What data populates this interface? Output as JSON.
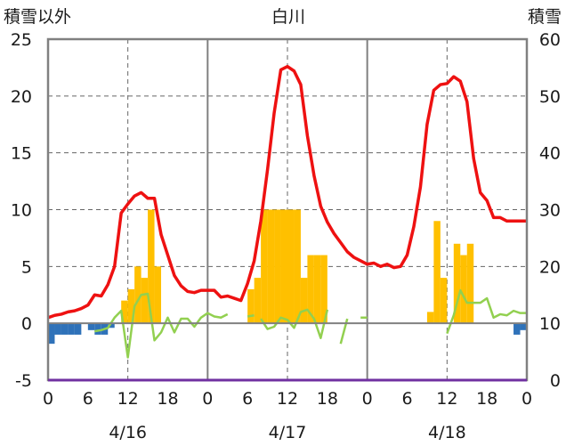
{
  "chart_data": {
    "type": "bar+line",
    "title": "白川",
    "left_axis_label": "積雪以外",
    "right_axis_label": "積雪",
    "left_ylim": [
      -5,
      25
    ],
    "left_yticks": [
      -5,
      0,
      5,
      10,
      15,
      20,
      25
    ],
    "right_ylim": [
      0,
      60
    ],
    "right_yticks": [
      0,
      10,
      20,
      30,
      40,
      50,
      60
    ],
    "xlim_hours": [
      0,
      72
    ],
    "x_tick_values": [
      0,
      6,
      12,
      18,
      24,
      30,
      36,
      42,
      48,
      54,
      60,
      66,
      72
    ],
    "x_tick_labels": [
      "0",
      "6",
      "12",
      "18",
      "0",
      "6",
      "12",
      "18",
      "0",
      "6",
      "12",
      "18",
      "0"
    ],
    "day_labels": [
      {
        "label": "4/16",
        "center_hour": 12
      },
      {
        "label": "4/17",
        "center_hour": 36
      },
      {
        "label": "4/18",
        "center_hour": 60
      }
    ],
    "day_dividers_hours": [
      24,
      48
    ],
    "noon_dashed_hours": [
      12,
      36,
      60
    ],
    "grid": {
      "horizontal": "dashed",
      "values": [
        5,
        10,
        15,
        20
      ]
    },
    "colors": {
      "temperature": "#ee1111",
      "precip": "#ffc000",
      "snow": "#2f72b9",
      "wind": "#92d050",
      "bottom_line": "#7030a0",
      "axes": "#808080",
      "grid": "#666666"
    },
    "series": [
      {
        "role": "temperature",
        "axis": "left",
        "type": "line",
        "x": [
          0,
          1,
          2,
          3,
          4,
          5,
          6,
          7,
          8,
          9,
          10,
          11,
          12,
          13,
          14,
          15,
          16,
          17,
          18,
          19,
          20,
          21,
          22,
          23,
          24,
          25,
          26,
          27,
          28,
          29,
          30,
          31,
          32,
          33,
          34,
          35,
          36,
          37,
          38,
          39,
          40,
          41,
          42,
          43,
          44,
          45,
          46,
          47,
          48,
          49,
          50,
          51,
          52,
          53,
          54,
          55,
          56,
          57,
          58,
          59,
          60,
          61,
          62,
          63,
          64,
          65,
          66,
          67,
          68,
          69,
          70,
          71,
          72
        ],
        "values": [
          0.5,
          0.7,
          0.8,
          1.0,
          1.1,
          1.3,
          1.6,
          2.5,
          2.4,
          3.4,
          5.0,
          9.7,
          10.5,
          11.2,
          11.5,
          11.0,
          11.0,
          7.8,
          6.0,
          4.2,
          3.3,
          2.8,
          2.7,
          2.9,
          2.9,
          2.9,
          2.3,
          2.4,
          2.2,
          2.0,
          3.5,
          5.5,
          9.0,
          13.5,
          18.5,
          22.3,
          22.6,
          22.2,
          21.0,
          16.5,
          13.0,
          10.3,
          8.9,
          7.9,
          7.1,
          6.3,
          5.8,
          5.5,
          5.2,
          5.3,
          5.0,
          5.2,
          4.9,
          5.0,
          6.0,
          8.5,
          12.0,
          17.5,
          20.5,
          21.0,
          21.1,
          21.7,
          21.3,
          19.5,
          14.5,
          11.5,
          10.8,
          9.3,
          9.3,
          9.0,
          9.0,
          9.0,
          9.0
        ]
      },
      {
        "role": "precipitation",
        "axis": "left",
        "type": "bar",
        "x": [
          11.5,
          12.5,
          13.5,
          14.5,
          15.5,
          16.5,
          30.5,
          31.5,
          32.5,
          33.5,
          34.5,
          35.5,
          36.5,
          37.5,
          38.5,
          39.5,
          40.5,
          41.5,
          57.5,
          58.5,
          59.5,
          61.5,
          62.5,
          63.5
        ],
        "values": [
          2,
          3,
          5,
          4,
          10,
          5,
          3,
          4,
          10,
          10,
          10,
          10,
          10,
          10,
          4,
          6,
          6,
          6,
          1,
          9,
          4,
          7,
          6,
          7
        ]
      },
      {
        "role": "snow_change",
        "axis": "left",
        "type": "bar",
        "x": [
          0.5,
          1.5,
          2.5,
          3.5,
          4.5,
          6.5,
          7.5,
          8.5,
          9.5,
          70.5,
          71.5
        ],
        "values": [
          -1.8,
          -1.0,
          -1.0,
          -1.0,
          -1.0,
          -0.6,
          -1.0,
          -1.0,
          -0.4,
          -1.0,
          -0.6
        ]
      },
      {
        "role": "wind",
        "axis": "left",
        "type": "line",
        "segments": [
          {
            "x": [
              7,
              8,
              9,
              10,
              11,
              12,
              13,
              14,
              15,
              16,
              17,
              18,
              19,
              20,
              21,
              22,
              23,
              24,
              25,
              26,
              27
            ],
            "values": [
              -0.7,
              -0.6,
              -0.4,
              0.5,
              1.1,
              -3.0,
              1.5,
              2.5,
              2.6,
              -1.5,
              -0.8,
              0.5,
              -0.8,
              0.4,
              0.4,
              -0.3,
              0.5,
              0.9,
              0.6,
              0.5,
              0.8
            ]
          },
          {
            "x": [
              30,
              31
            ],
            "values": [
              0.6,
              0.7
            ]
          },
          {
            "x": [
              32,
              33,
              34,
              35,
              36,
              37,
              38,
              39,
              40,
              41,
              42
            ],
            "values": [
              0.4,
              -0.5,
              -0.3,
              0.5,
              0.3,
              -0.4,
              1.0,
              1.2,
              0.4,
              -1.3,
              1.2
            ]
          },
          {
            "x": [
              44,
              45
            ],
            "values": [
              -1.8,
              0.4
            ]
          },
          {
            "x": [
              47,
              48
            ],
            "values": [
              0.5,
              0.5
            ]
          },
          {
            "x": [
              60,
              61,
              62,
              63,
              64,
              65,
              66,
              67,
              68,
              69,
              70,
              71,
              72
            ],
            "values": [
              -0.9,
              0.7,
              2.9,
              1.8,
              1.8,
              1.8,
              2.2,
              0.5,
              0.8,
              0.7,
              1.1,
              0.9,
              0.9
            ]
          }
        ]
      },
      {
        "role": "bottom_reference",
        "axis": "left",
        "type": "line",
        "x": [
          0,
          72
        ],
        "values": [
          -5,
          -5
        ]
      }
    ]
  }
}
